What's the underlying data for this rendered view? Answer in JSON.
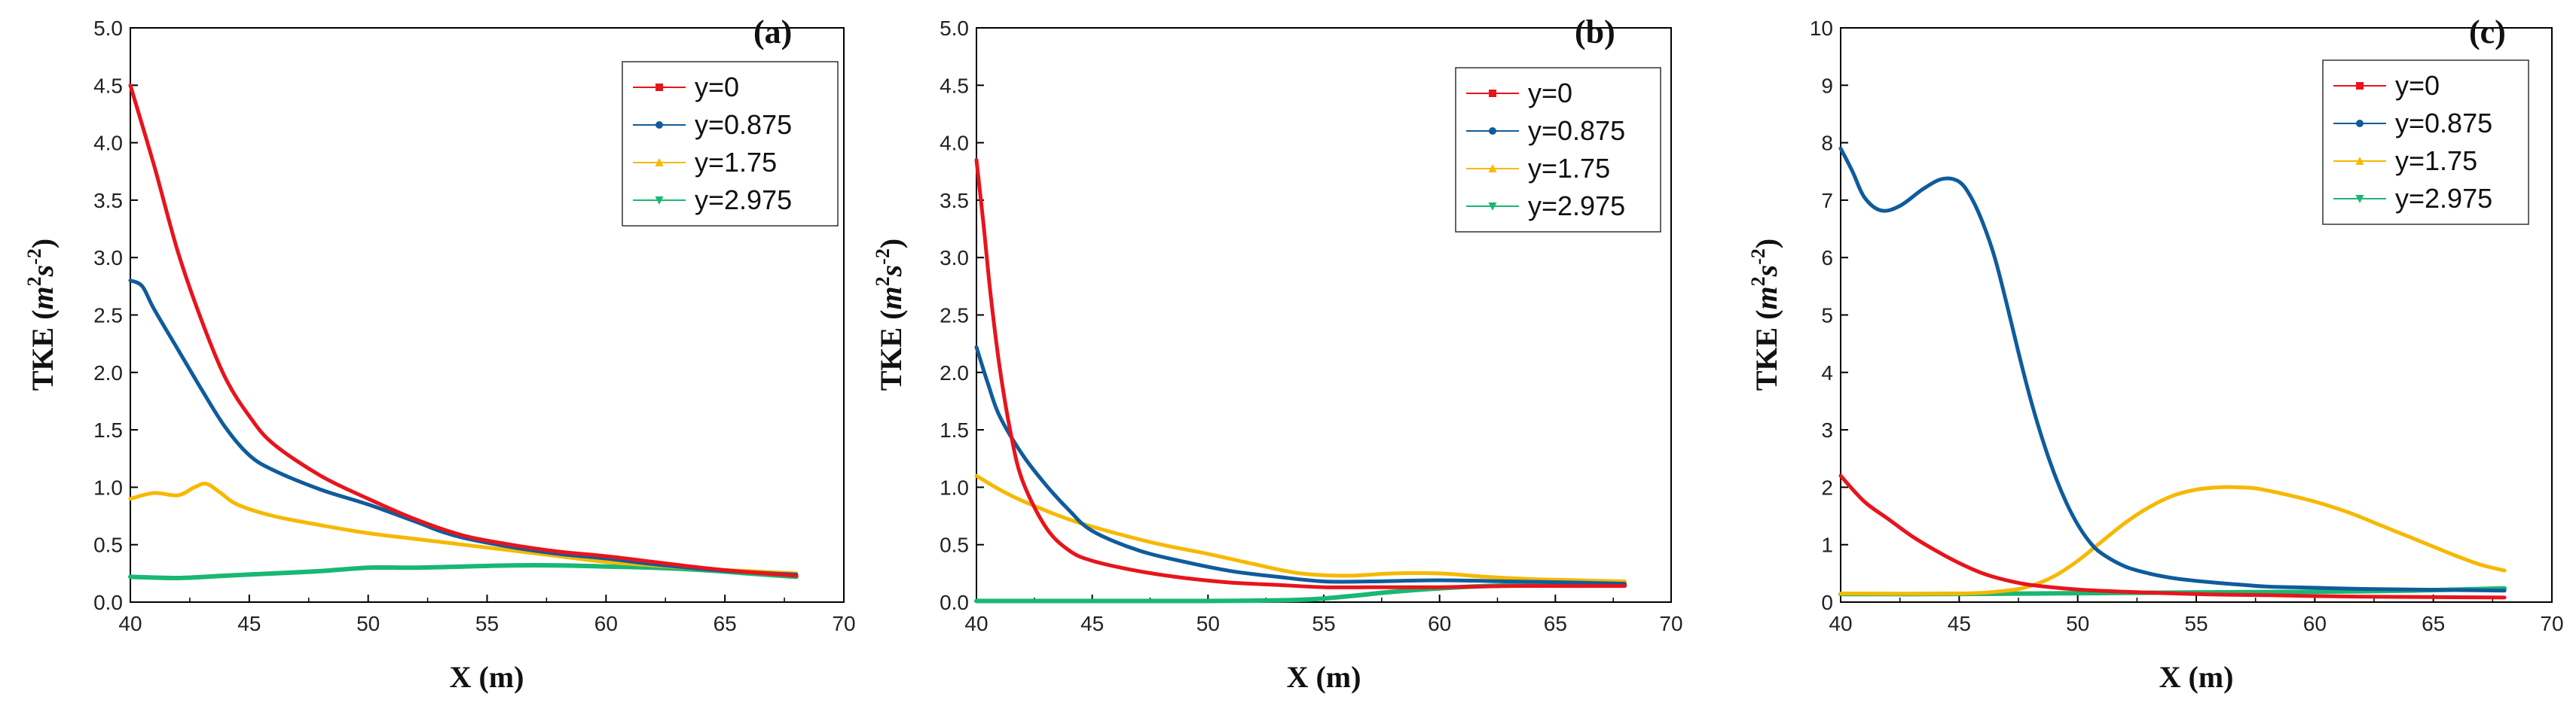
{
  "colors": {
    "y0": "#e8141c",
    "y0875": "#0f5c9c",
    "y175": "#f7b800",
    "y2975": "#18b873"
  },
  "chart_data": [
    {
      "type": "line",
      "panel_label": "(a)",
      "xlabel": "X (m)",
      "ylabel": "TKE (m2s-2)",
      "ylabel_parts": {
        "main": "TKE (",
        "m": "m",
        "sup1": "2",
        "s": "s",
        "sup2": "-2",
        "close": ")"
      },
      "xlim": [
        40,
        70
      ],
      "ylim": [
        0,
        5
      ],
      "xticks": [
        "40",
        "45",
        "50",
        "55",
        "60",
        "65",
        "70"
      ],
      "yticks": [
        "0.0",
        "0.5",
        "1.0",
        "1.5",
        "2.0",
        "2.5",
        "3.0",
        "3.5",
        "4.0",
        "4.5",
        "5.0"
      ],
      "series": [
        {
          "name": "y=0",
          "color_key": "y0",
          "marker": "square",
          "x": [
            40,
            41,
            42,
            43,
            44,
            45,
            46,
            48,
            50,
            52,
            54,
            56,
            58,
            60,
            62,
            64,
            66,
            68
          ],
          "y": [
            4.5,
            3.8,
            3.05,
            2.45,
            1.95,
            1.62,
            1.38,
            1.1,
            0.9,
            0.72,
            0.58,
            0.5,
            0.44,
            0.4,
            0.35,
            0.3,
            0.26,
            0.23
          ]
        },
        {
          "name": "y=0.875",
          "color_key": "y0875",
          "marker": "circle",
          "x": [
            40,
            40.5,
            41,
            42,
            43,
            44,
            45,
            46,
            48,
            50,
            52,
            53,
            54,
            56,
            58,
            60,
            62,
            64,
            66,
            68
          ],
          "y": [
            2.8,
            2.75,
            2.55,
            2.2,
            1.85,
            1.52,
            1.28,
            1.15,
            0.98,
            0.85,
            0.7,
            0.62,
            0.56,
            0.48,
            0.42,
            0.38,
            0.33,
            0.29,
            0.26,
            0.24
          ]
        },
        {
          "name": "y=1.75",
          "color_key": "y175",
          "marker": "triangle-up",
          "x": [
            40,
            41,
            42,
            42.7,
            43.2,
            43.8,
            44.5,
            46,
            48,
            50,
            52,
            54,
            56,
            58,
            60,
            62,
            64,
            66,
            68
          ],
          "y": [
            0.9,
            0.95,
            0.93,
            1.0,
            1.03,
            0.95,
            0.85,
            0.75,
            0.67,
            0.6,
            0.55,
            0.5,
            0.45,
            0.4,
            0.35,
            0.32,
            0.29,
            0.27,
            0.25
          ]
        },
        {
          "name": "y=2.975",
          "color_key": "y2975",
          "marker": "triangle-down",
          "x": [
            40,
            42,
            44,
            46,
            48,
            50,
            52,
            54,
            56,
            58,
            60,
            62,
            64,
            66,
            68
          ],
          "y": [
            0.22,
            0.21,
            0.23,
            0.25,
            0.27,
            0.3,
            0.3,
            0.31,
            0.32,
            0.32,
            0.31,
            0.3,
            0.28,
            0.25,
            0.22
          ]
        }
      ],
      "legend": {
        "position": "top-right"
      }
    },
    {
      "type": "line",
      "panel_label": "(b)",
      "xlabel": "X (m)",
      "ylabel": "TKE (m2s-2)",
      "ylabel_parts": {
        "main": "TKE (",
        "m": "m",
        "sup1": "2",
        "s": "s",
        "sup2": "-2",
        "close": ")"
      },
      "xlim": [
        40,
        70
      ],
      "ylim": [
        0,
        5
      ],
      "xticks": [
        "40",
        "45",
        "50",
        "55",
        "60",
        "65",
        "70"
      ],
      "yticks": [
        "0.0",
        "0.5",
        "1.0",
        "1.5",
        "2.0",
        "2.5",
        "3.0",
        "3.5",
        "4.0",
        "4.5",
        "5.0"
      ],
      "series": [
        {
          "name": "y=0",
          "color_key": "y0",
          "marker": "square",
          "x": [
            40,
            40.3,
            40.6,
            41,
            41.5,
            42,
            43,
            44,
            45,
            47,
            49,
            51,
            53,
            55,
            57,
            60,
            63,
            66,
            68
          ],
          "y": [
            3.85,
            3.3,
            2.7,
            2.05,
            1.45,
            1.05,
            0.65,
            0.45,
            0.36,
            0.27,
            0.21,
            0.17,
            0.15,
            0.13,
            0.13,
            0.13,
            0.14,
            0.14,
            0.14
          ]
        },
        {
          "name": "y=0.875",
          "color_key": "y0875",
          "marker": "circle",
          "x": [
            40,
            40.5,
            41,
            42,
            43,
            44,
            45,
            47,
            49,
            51,
            53,
            55,
            57,
            60,
            63,
            66,
            68
          ],
          "y": [
            2.22,
            1.9,
            1.62,
            1.28,
            1.02,
            0.8,
            0.62,
            0.45,
            0.35,
            0.27,
            0.22,
            0.18,
            0.18,
            0.19,
            0.18,
            0.17,
            0.16
          ]
        },
        {
          "name": "y=1.75",
          "color_key": "y175",
          "marker": "triangle-up",
          "x": [
            40,
            41,
            42,
            44,
            46,
            48,
            50,
            52,
            54,
            56,
            58,
            60,
            62,
            64,
            66,
            68
          ],
          "y": [
            1.1,
            0.98,
            0.88,
            0.72,
            0.6,
            0.5,
            0.42,
            0.33,
            0.25,
            0.23,
            0.25,
            0.25,
            0.22,
            0.2,
            0.19,
            0.18
          ]
        },
        {
          "name": "y=2.975",
          "color_key": "y2975",
          "marker": "triangle-down",
          "x": [
            40,
            45,
            50,
            54,
            56,
            58,
            60,
            62,
            64,
            66,
            68
          ],
          "y": [
            0.01,
            0.01,
            0.01,
            0.02,
            0.05,
            0.09,
            0.12,
            0.14,
            0.15,
            0.15,
            0.15
          ]
        }
      ],
      "legend": {
        "position": "top-right"
      }
    },
    {
      "type": "line",
      "panel_label": "(c)",
      "xlabel": "X (m)",
      "ylabel": "TKE (m2s-2)",
      "ylabel_parts": {
        "main": "TKE (",
        "m": "m",
        "sup1": "2",
        "s": "s",
        "sup2": "-2",
        "close": ")"
      },
      "xlim": [
        40,
        70
      ],
      "ylim": [
        0,
        10
      ],
      "xticks": [
        "40",
        "45",
        "50",
        "55",
        "60",
        "65",
        "70"
      ],
      "yticks": [
        "0",
        "1",
        "2",
        "3",
        "4",
        "5",
        "6",
        "7",
        "8",
        "9",
        "10"
      ],
      "series": [
        {
          "name": "y=0",
          "color_key": "y0",
          "marker": "square",
          "x": [
            40,
            41,
            42,
            43,
            44,
            45,
            46,
            47,
            48,
            50,
            52,
            55,
            58,
            61,
            64,
            68
          ],
          "y": [
            2.2,
            1.75,
            1.45,
            1.15,
            0.9,
            0.68,
            0.5,
            0.38,
            0.3,
            0.22,
            0.18,
            0.14,
            0.12,
            0.1,
            0.09,
            0.08
          ]
        },
        {
          "name": "y=0.875",
          "color_key": "y0875",
          "marker": "circle",
          "x": [
            40,
            40.5,
            41,
            41.7,
            42.5,
            43.5,
            44.3,
            45,
            45.5,
            46,
            46.5,
            47,
            47.5,
            48,
            48.5,
            49,
            49.5,
            50,
            50.5,
            51,
            52,
            53,
            54,
            55,
            56,
            57,
            58,
            60,
            62,
            64,
            66,
            68
          ],
          "y": [
            7.9,
            7.5,
            7.05,
            6.82,
            6.9,
            7.2,
            7.37,
            7.32,
            7.05,
            6.6,
            6.0,
            5.2,
            4.35,
            3.55,
            2.85,
            2.25,
            1.75,
            1.35,
            1.05,
            0.85,
            0.62,
            0.5,
            0.42,
            0.37,
            0.33,
            0.3,
            0.27,
            0.25,
            0.23,
            0.22,
            0.21,
            0.2
          ]
        },
        {
          "name": "y=1.75",
          "color_key": "y175",
          "marker": "triangle-up",
          "x": [
            40,
            45,
            47,
            48,
            49,
            50,
            51,
            52,
            53,
            54,
            55,
            56,
            56.7,
            57.5,
            58.5,
            60,
            61.5,
            63,
            64.5,
            66,
            67,
            68
          ],
          "y": [
            0.15,
            0.15,
            0.2,
            0.28,
            0.45,
            0.72,
            1.05,
            1.38,
            1.65,
            1.85,
            1.96,
            2.0,
            2.0,
            1.98,
            1.9,
            1.75,
            1.55,
            1.3,
            1.05,
            0.8,
            0.65,
            0.55
          ]
        },
        {
          "name": "y=2.975",
          "color_key": "y2975",
          "marker": "triangle-down",
          "x": [
            40,
            44,
            48,
            52,
            56,
            60,
            64,
            68
          ],
          "y": [
            0.14,
            0.14,
            0.15,
            0.16,
            0.17,
            0.18,
            0.2,
            0.24
          ]
        }
      ],
      "legend": {
        "position": "top-right"
      }
    }
  ]
}
